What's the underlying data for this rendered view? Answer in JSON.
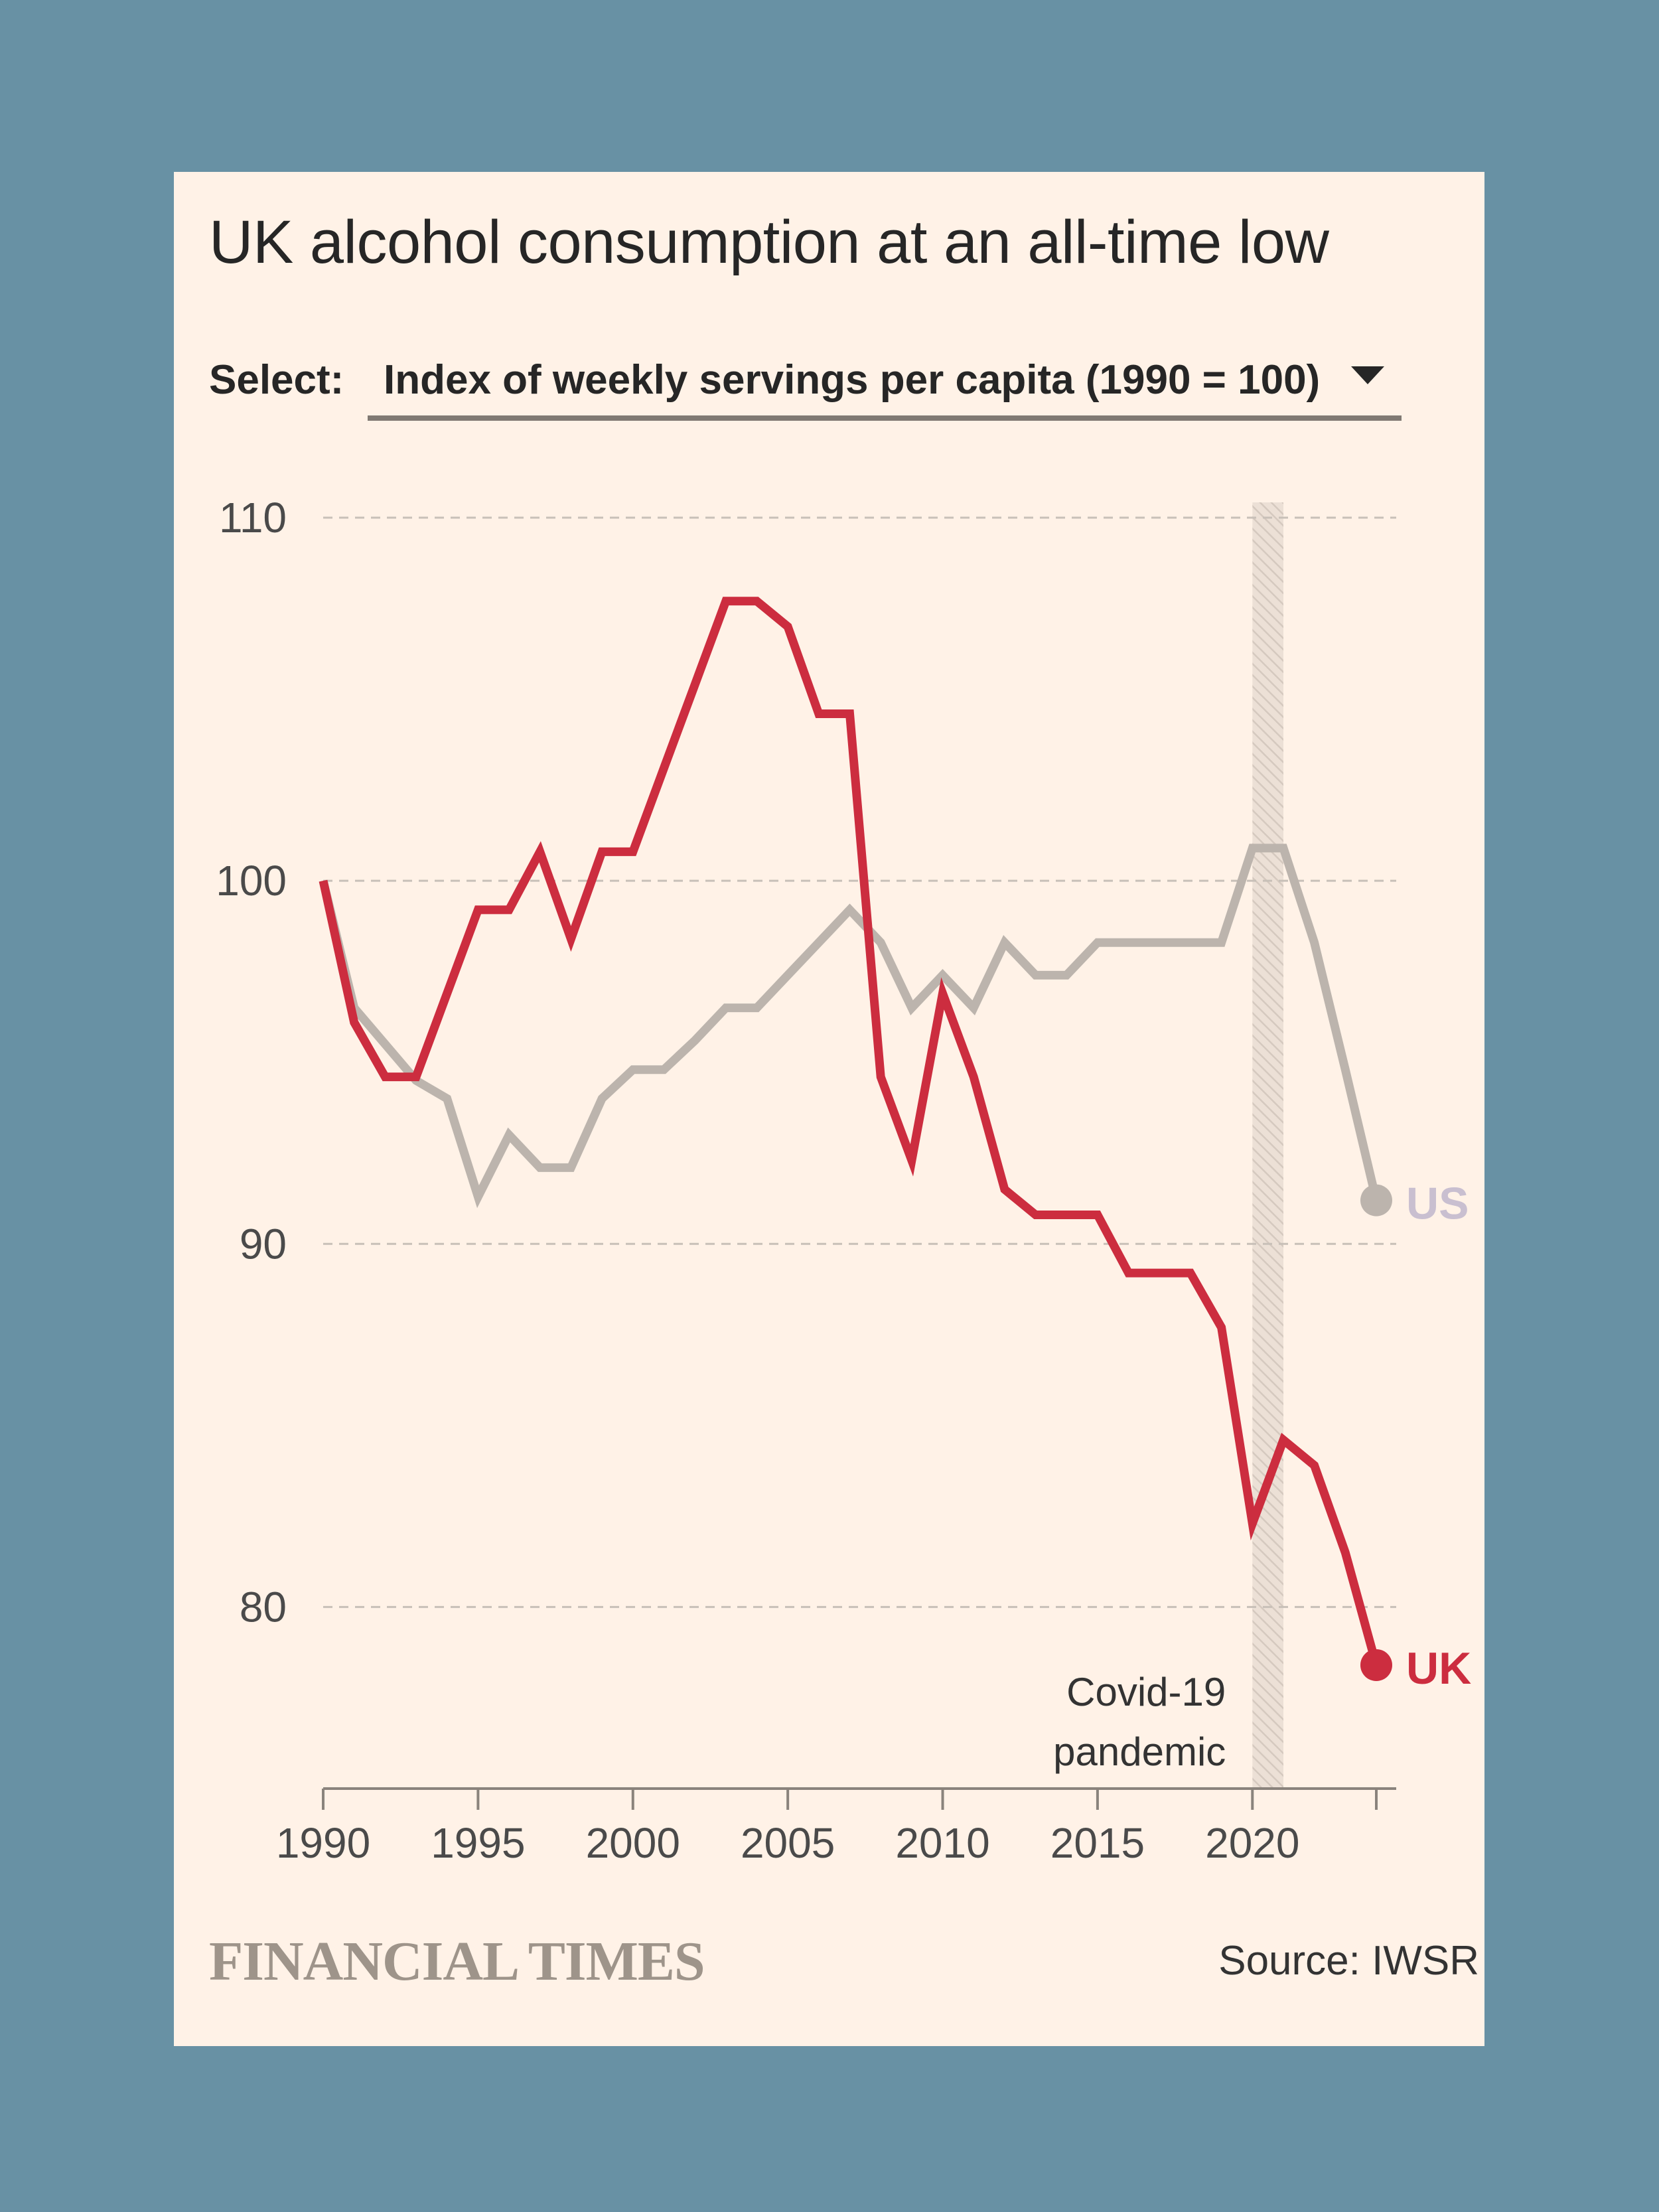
{
  "header": {
    "title": "UK alcohol consumption at an all-time low"
  },
  "selector": {
    "label": "Select:",
    "value": "Index of weekly servings per capita (1990 = 100)"
  },
  "footer": {
    "logo_text": "FINANCIAL TIMES",
    "source": "Source: IWSR"
  },
  "colors": {
    "background": "#6891a4",
    "card": "#fff2e7",
    "uk": "#cc2d3f",
    "us": "#bcb4ad"
  },
  "chart_data": {
    "type": "line",
    "title": "UK alcohol consumption at an all-time low",
    "xlabel": "",
    "ylabel": "",
    "xlim": [
      1990,
      2024
    ],
    "ylim": [
      75,
      110
    ],
    "x_ticks": [
      1990,
      1995,
      2000,
      2005,
      2010,
      2015,
      2020
    ],
    "y_ticks": [
      80,
      90,
      100,
      110
    ],
    "grid": true,
    "series": [
      {
        "name": "US",
        "color": "#bcb4ad",
        "x": [
          1990,
          1991,
          1992,
          1993,
          1994,
          1995,
          1996,
          1997,
          1998,
          1999,
          2000,
          2001,
          2002,
          2003,
          2004,
          2005,
          2006,
          2007,
          2008,
          2009,
          2010,
          2011,
          2012,
          2013,
          2014,
          2015,
          2016,
          2017,
          2018,
          2019,
          2020,
          2021,
          2022,
          2023,
          2024
        ],
        "values": [
          100,
          96.5,
          95.5,
          94.5,
          94,
          91.3,
          93,
          92.1,
          92.1,
          94,
          94.8,
          94.8,
          95.6,
          96.5,
          96.5,
          97.4,
          98.3,
          99.2,
          98.3,
          96.5,
          97.4,
          96.5,
          98.3,
          97.4,
          97.4,
          98.3,
          98.3,
          98.3,
          98.3,
          98.3,
          100.9,
          100.9,
          98.3,
          94.8,
          91.2
        ]
      },
      {
        "name": "UK",
        "color": "#cc2d3f",
        "x": [
          1990,
          1991,
          1992,
          1993,
          1994,
          1995,
          1996,
          1997,
          1998,
          1999,
          2000,
          2001,
          2002,
          2003,
          2004,
          2005,
          2006,
          2007,
          2008,
          2009,
          2010,
          2011,
          2012,
          2013,
          2014,
          2015,
          2016,
          2017,
          2018,
          2019,
          2020,
          2021,
          2022,
          2023,
          2024
        ],
        "values": [
          100,
          96.1,
          94.6,
          94.6,
          96.9,
          99.2,
          99.2,
          100.8,
          98.4,
          100.8,
          100.8,
          103.1,
          105.4,
          107.7,
          107.7,
          107,
          104.6,
          104.6,
          94.6,
          92.3,
          96.9,
          94.6,
          91.5,
          90.8,
          90.8,
          90.8,
          89.2,
          89.2,
          89.2,
          87.7,
          82.3,
          84.6,
          83.9,
          81.5,
          78.4
        ]
      }
    ],
    "annotations": [
      {
        "type": "band",
        "x_range": [
          2020,
          2021
        ],
        "label": [
          "Covid-19",
          "pandemic"
        ]
      }
    ]
  }
}
